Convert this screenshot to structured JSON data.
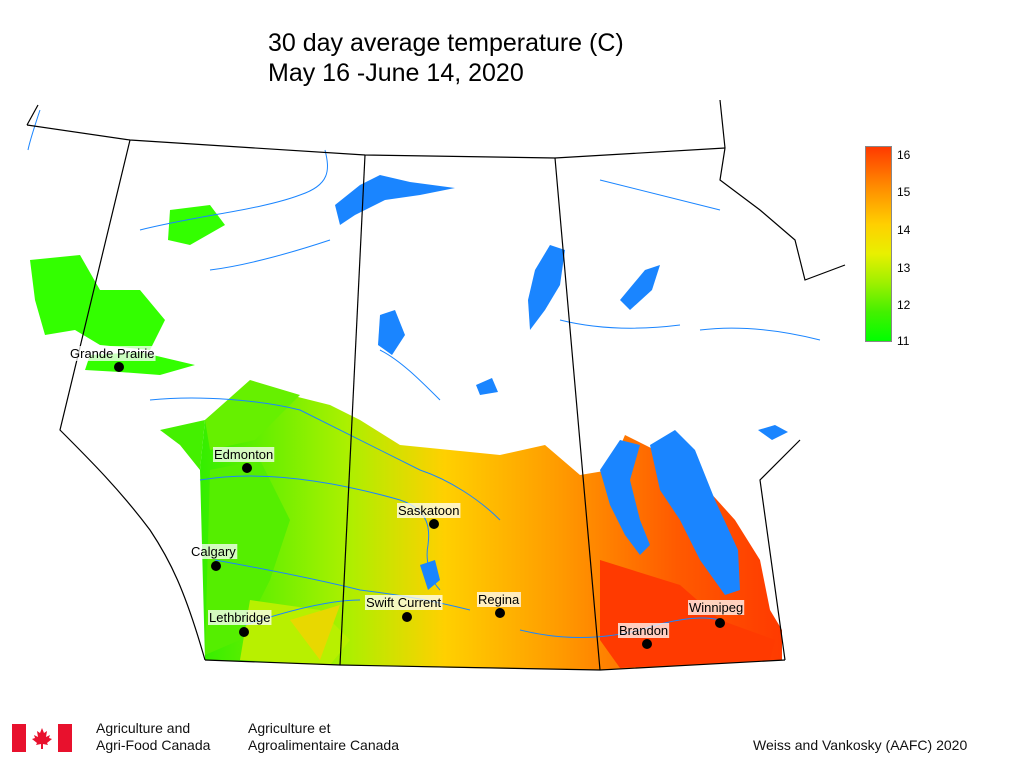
{
  "title": {
    "line1": "30 day average temperature (C)",
    "line2": "May 16 -June 14, 2020"
  },
  "legend": {
    "ticks": [
      "16",
      "15",
      "14",
      "13",
      "12",
      "11"
    ]
  },
  "cities": [
    {
      "name": "Grande Prairie"
    },
    {
      "name": "Edmonton"
    },
    {
      "name": "Saskatoon"
    },
    {
      "name": "Calgary"
    },
    {
      "name": "Swift Current"
    },
    {
      "name": "Regina"
    },
    {
      "name": "Winnipeg"
    },
    {
      "name": "Lethbridge"
    },
    {
      "name": "Brandon"
    }
  ],
  "footer": {
    "org_en_line1": "Agriculture and",
    "org_en_line2": "Agri-Food Canada",
    "org_fr_line1": "Agriculture et",
    "org_fr_line2": "Agroalimentaire Canada",
    "credit": "Weiss and Vankosky (AAFC) 2020"
  },
  "colors": {
    "water": "#1a85ff",
    "warm": "#ff3a00",
    "cool": "#00ff00"
  }
}
